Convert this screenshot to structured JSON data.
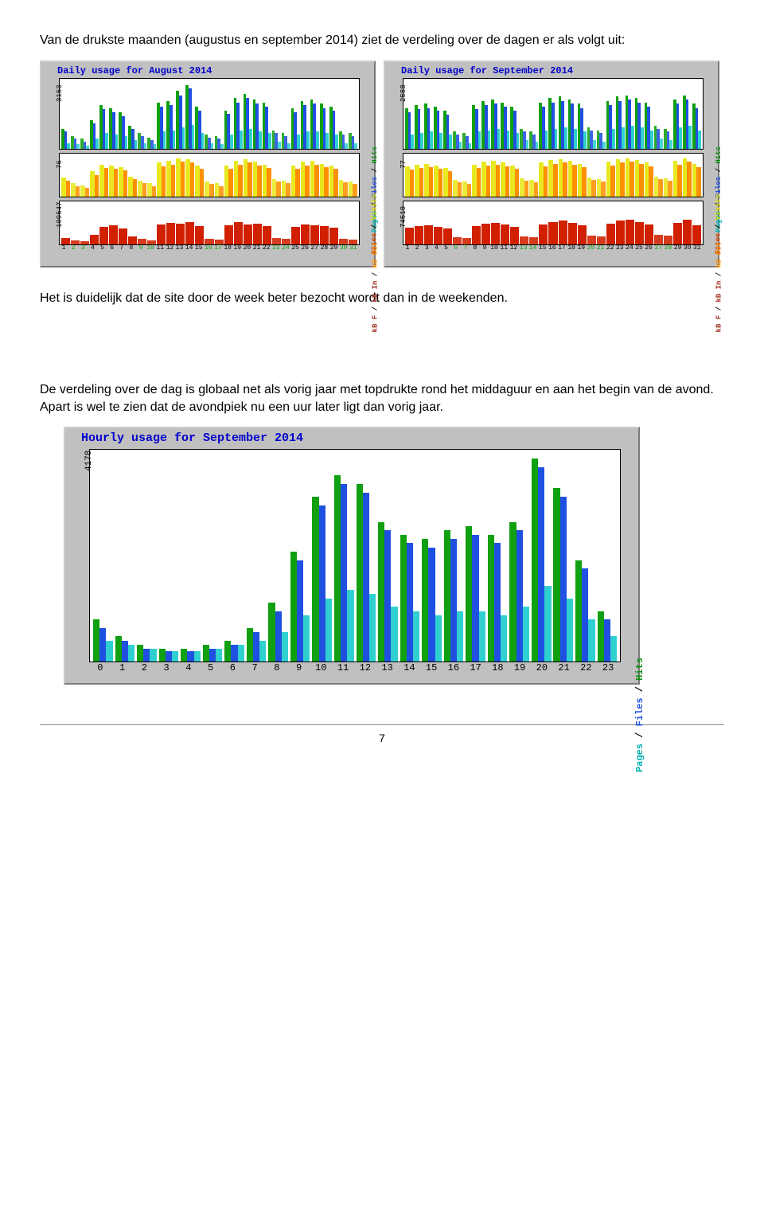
{
  "paragraphs": {
    "intro": "Van de drukste maanden (augustus en september 2014) ziet de verdeling over de dagen er als volgt uit:",
    "mid": "Het is duidelijk dat de site door de week beter bezocht wordt dan in de weekenden.",
    "last": "De verdeling over de dag is globaal net als vorig jaar met topdrukte rond het middaguur en aan het begin van de avond. Apart is wel te zien dat de avondpiek nu een uur later ligt dan vorig jaar."
  },
  "colors": {
    "hits": "#10a010",
    "files": "#2050e0",
    "pages": "#30d0d0",
    "visits": "#e8e820",
    "sites": "#ff9000",
    "kbin": "#a03020",
    "kbout": "#d02000",
    "panel_bg": "#ffffff",
    "box_bg": "#c0c0c0",
    "weekend_tick": "#10a010"
  },
  "august": {
    "title": "Daily usage for August 2014",
    "ymax_top": 3153,
    "ymax_mid": 76,
    "ymax_bot": 109547,
    "days": 31,
    "weekend_days": [
      2,
      3,
      9,
      10,
      16,
      17,
      23,
      24,
      30,
      31
    ],
    "top": {
      "hits": [
        28,
        18,
        14,
        40,
        62,
        58,
        52,
        32,
        22,
        16,
        66,
        68,
        82,
        90,
        60,
        20,
        18,
        54,
        72,
        78,
        70,
        66,
        26,
        22,
        58,
        68,
        70,
        64,
        60,
        24,
        22
      ],
      "files": [
        24,
        14,
        10,
        36,
        56,
        52,
        46,
        28,
        18,
        12,
        60,
        62,
        76,
        86,
        54,
        16,
        14,
        50,
        66,
        72,
        64,
        60,
        22,
        18,
        52,
        62,
        64,
        58,
        54,
        20,
        18
      ],
      "pages": [
        8,
        6,
        4,
        14,
        22,
        20,
        18,
        12,
        8,
        6,
        24,
        26,
        30,
        34,
        22,
        8,
        6,
        20,
        26,
        28,
        24,
        22,
        10,
        8,
        20,
        24,
        24,
        22,
        20,
        8,
        8
      ]
    },
    "mid": {
      "visits": [
        44,
        30,
        26,
        58,
        74,
        72,
        68,
        46,
        36,
        30,
        78,
        82,
        88,
        86,
        72,
        34,
        30,
        72,
        82,
        86,
        80,
        74,
        40,
        36,
        72,
        80,
        82,
        76,
        72,
        38,
        34
      ],
      "sites": [
        36,
        24,
        20,
        50,
        66,
        64,
        60,
        40,
        30,
        24,
        70,
        74,
        80,
        78,
        64,
        28,
        24,
        64,
        74,
        78,
        72,
        66,
        34,
        30,
        64,
        72,
        74,
        68,
        64,
        32,
        28
      ]
    },
    "bot": {
      "kbout": [
        14,
        8,
        6,
        22,
        40,
        44,
        36,
        18,
        12,
        8,
        46,
        50,
        48,
        52,
        42,
        12,
        10,
        44,
        52,
        46,
        48,
        42,
        14,
        12,
        40,
        46,
        44,
        42,
        38,
        12,
        10
      ]
    },
    "right_labels": {
      "top": "Pages / Files / Hits",
      "mid": "Sites / Visits",
      "bot": "kB F / kB In / kB Out"
    }
  },
  "september": {
    "title": "Daily usage for September 2014",
    "ymax_top": 2588,
    "ymax_mid": 77,
    "ymax_bot": 74510,
    "days": 31,
    "weekend_days": [
      6,
      7,
      13,
      14,
      20,
      21,
      27,
      28
    ],
    "top": {
      "hits": [
        58,
        62,
        64,
        60,
        54,
        24,
        22,
        62,
        68,
        70,
        66,
        60,
        28,
        24,
        66,
        72,
        74,
        70,
        64,
        30,
        26,
        68,
        74,
        76,
        72,
        66,
        32,
        28,
        70,
        76,
        64
      ],
      "files": [
        52,
        56,
        58,
        54,
        48,
        20,
        18,
        56,
        62,
        64,
        60,
        54,
        24,
        20,
        60,
        66,
        68,
        64,
        58,
        26,
        22,
        62,
        68,
        70,
        66,
        60,
        28,
        24,
        64,
        70,
        58
      ],
      "pages": [
        20,
        22,
        24,
        22,
        20,
        10,
        8,
        24,
        26,
        28,
        26,
        22,
        12,
        10,
        26,
        28,
        30,
        28,
        24,
        12,
        10,
        28,
        30,
        32,
        30,
        26,
        14,
        12,
        30,
        32,
        26
      ]
    },
    "mid": {
      "visits": [
        70,
        74,
        76,
        72,
        66,
        38,
        34,
        74,
        80,
        82,
        78,
        72,
        42,
        38,
        78,
        84,
        86,
        82,
        76,
        44,
        40,
        80,
        86,
        88,
        84,
        78,
        46,
        42,
        82,
        88,
        76
      ],
      "sites": [
        62,
        66,
        68,
        64,
        58,
        32,
        28,
        66,
        72,
        74,
        70,
        64,
        36,
        32,
        70,
        76,
        78,
        74,
        68,
        38,
        34,
        72,
        78,
        80,
        76,
        70,
        40,
        36,
        74,
        80,
        68
      ]
    },
    "bot": {
      "kbout": [
        38,
        42,
        44,
        40,
        36,
        16,
        14,
        42,
        48,
        50,
        46,
        40,
        18,
        16,
        46,
        52,
        54,
        50,
        44,
        20,
        18,
        48,
        54,
        56,
        52,
        46,
        22,
        20,
        50,
        56,
        44
      ]
    },
    "right_labels": {
      "top": "Pages / Files / Hits",
      "mid": "Sites / Visits",
      "bot": "kB F / kB In / kB Out"
    }
  },
  "hourly": {
    "title": "Hourly usage for September 2014",
    "ymax": 4178,
    "hours": 24,
    "hits": [
      20,
      12,
      8,
      6,
      6,
      8,
      10,
      16,
      28,
      52,
      78,
      88,
      84,
      66,
      60,
      58,
      62,
      64,
      60,
      66,
      96,
      82,
      48,
      24
    ],
    "files": [
      16,
      10,
      6,
      5,
      5,
      6,
      8,
      14,
      24,
      48,
      74,
      84,
      80,
      62,
      56,
      54,
      58,
      60,
      56,
      62,
      92,
      78,
      44,
      20
    ],
    "pages": [
      10,
      8,
      6,
      5,
      5,
      6,
      8,
      10,
      14,
      22,
      30,
      34,
      32,
      26,
      24,
      22,
      24,
      24,
      22,
      26,
      36,
      30,
      20,
      12
    ],
    "right_label": "Pages / Files / Hits"
  },
  "page_number": "7"
}
